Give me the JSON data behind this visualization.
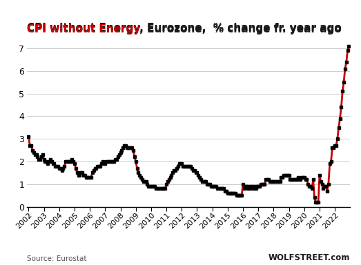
{
  "title_red": "CPI without Energy",
  "title_black": ", Eurozone,  % change fr. year ago",
  "source_left": "Source: Eurostat",
  "source_right": "WOLFSTREET.com",
  "xlim_start": 2001.9,
  "xlim_end": 2023.0,
  "ylim": [
    0,
    7.5
  ],
  "yticks": [
    0,
    1,
    2,
    3,
    4,
    5,
    6,
    7
  ],
  "background_color": "#ffffff",
  "line_color": "#cc0000",
  "marker_color": "#000000",
  "grid_color": "#cccccc",
  "xtick_labels": [
    "2002",
    "2003",
    "2004",
    "2005",
    "2006",
    "2007",
    "2008",
    "2009",
    "2010",
    "2011",
    "2012",
    "2013",
    "2014",
    "2015",
    "2016",
    "2017",
    "2018",
    "2019",
    "2020",
    "2021",
    "2022"
  ],
  "data": [
    [
      2002.0,
      3.1
    ],
    [
      2002.083,
      2.7
    ],
    [
      2002.167,
      2.7
    ],
    [
      2002.25,
      2.5
    ],
    [
      2002.333,
      2.4
    ],
    [
      2002.417,
      2.3
    ],
    [
      2002.5,
      2.3
    ],
    [
      2002.583,
      2.2
    ],
    [
      2002.667,
      2.1
    ],
    [
      2002.75,
      2.1
    ],
    [
      2002.833,
      2.2
    ],
    [
      2002.917,
      2.3
    ],
    [
      2003.0,
      2.1
    ],
    [
      2003.083,
      2.0
    ],
    [
      2003.167,
      2.0
    ],
    [
      2003.25,
      1.9
    ],
    [
      2003.333,
      2.0
    ],
    [
      2003.417,
      2.1
    ],
    [
      2003.5,
      2.0
    ],
    [
      2003.583,
      1.9
    ],
    [
      2003.667,
      1.9
    ],
    [
      2003.75,
      1.8
    ],
    [
      2003.833,
      1.8
    ],
    [
      2003.917,
      1.8
    ],
    [
      2004.0,
      1.7
    ],
    [
      2004.083,
      1.7
    ],
    [
      2004.167,
      1.6
    ],
    [
      2004.25,
      1.7
    ],
    [
      2004.333,
      1.8
    ],
    [
      2004.417,
      2.0
    ],
    [
      2004.5,
      2.0
    ],
    [
      2004.583,
      2.0
    ],
    [
      2004.667,
      2.0
    ],
    [
      2004.75,
      2.0
    ],
    [
      2004.833,
      2.1
    ],
    [
      2004.917,
      2.0
    ],
    [
      2005.0,
      1.9
    ],
    [
      2005.083,
      1.7
    ],
    [
      2005.167,
      1.5
    ],
    [
      2005.25,
      1.4
    ],
    [
      2005.333,
      1.4
    ],
    [
      2005.417,
      1.5
    ],
    [
      2005.5,
      1.5
    ],
    [
      2005.583,
      1.4
    ],
    [
      2005.667,
      1.4
    ],
    [
      2005.75,
      1.3
    ],
    [
      2005.833,
      1.3
    ],
    [
      2005.917,
      1.3
    ],
    [
      2006.0,
      1.3
    ],
    [
      2006.083,
      1.3
    ],
    [
      2006.167,
      1.5
    ],
    [
      2006.25,
      1.6
    ],
    [
      2006.333,
      1.7
    ],
    [
      2006.417,
      1.7
    ],
    [
      2006.5,
      1.8
    ],
    [
      2006.583,
      1.8
    ],
    [
      2006.667,
      1.8
    ],
    [
      2006.75,
      1.9
    ],
    [
      2006.833,
      2.0
    ],
    [
      2006.917,
      1.9
    ],
    [
      2007.0,
      1.9
    ],
    [
      2007.083,
      2.0
    ],
    [
      2007.167,
      2.0
    ],
    [
      2007.25,
      2.0
    ],
    [
      2007.333,
      2.0
    ],
    [
      2007.417,
      2.0
    ],
    [
      2007.5,
      2.0
    ],
    [
      2007.583,
      2.0
    ],
    [
      2007.667,
      2.1
    ],
    [
      2007.75,
      2.1
    ],
    [
      2007.833,
      2.2
    ],
    [
      2007.917,
      2.3
    ],
    [
      2008.0,
      2.4
    ],
    [
      2008.083,
      2.5
    ],
    [
      2008.167,
      2.6
    ],
    [
      2008.25,
      2.7
    ],
    [
      2008.333,
      2.7
    ],
    [
      2008.417,
      2.6
    ],
    [
      2008.5,
      2.6
    ],
    [
      2008.583,
      2.6
    ],
    [
      2008.667,
      2.6
    ],
    [
      2008.75,
      2.6
    ],
    [
      2008.833,
      2.5
    ],
    [
      2008.917,
      2.2
    ],
    [
      2009.0,
      2.0
    ],
    [
      2009.083,
      1.7
    ],
    [
      2009.167,
      1.5
    ],
    [
      2009.25,
      1.4
    ],
    [
      2009.333,
      1.3
    ],
    [
      2009.417,
      1.2
    ],
    [
      2009.5,
      1.1
    ],
    [
      2009.583,
      1.1
    ],
    [
      2009.667,
      1.1
    ],
    [
      2009.75,
      1.0
    ],
    [
      2009.833,
      0.9
    ],
    [
      2009.917,
      0.9
    ],
    [
      2010.0,
      0.9
    ],
    [
      2010.083,
      0.9
    ],
    [
      2010.167,
      0.9
    ],
    [
      2010.25,
      0.9
    ],
    [
      2010.333,
      0.8
    ],
    [
      2010.417,
      0.8
    ],
    [
      2010.5,
      0.8
    ],
    [
      2010.583,
      0.8
    ],
    [
      2010.667,
      0.8
    ],
    [
      2010.75,
      0.8
    ],
    [
      2010.833,
      0.8
    ],
    [
      2010.917,
      0.8
    ],
    [
      2011.0,
      1.0
    ],
    [
      2011.083,
      1.1
    ],
    [
      2011.167,
      1.2
    ],
    [
      2011.25,
      1.3
    ],
    [
      2011.333,
      1.4
    ],
    [
      2011.417,
      1.5
    ],
    [
      2011.5,
      1.6
    ],
    [
      2011.583,
      1.6
    ],
    [
      2011.667,
      1.7
    ],
    [
      2011.75,
      1.8
    ],
    [
      2011.833,
      1.9
    ],
    [
      2011.917,
      1.9
    ],
    [
      2012.0,
      1.9
    ],
    [
      2012.083,
      1.8
    ],
    [
      2012.167,
      1.8
    ],
    [
      2012.25,
      1.8
    ],
    [
      2012.333,
      1.8
    ],
    [
      2012.417,
      1.8
    ],
    [
      2012.5,
      1.8
    ],
    [
      2012.583,
      1.8
    ],
    [
      2012.667,
      1.7
    ],
    [
      2012.75,
      1.6
    ],
    [
      2012.833,
      1.6
    ],
    [
      2012.917,
      1.5
    ],
    [
      2013.0,
      1.5
    ],
    [
      2013.083,
      1.4
    ],
    [
      2013.167,
      1.3
    ],
    [
      2013.25,
      1.2
    ],
    [
      2013.333,
      1.1
    ],
    [
      2013.417,
      1.1
    ],
    [
      2013.5,
      1.1
    ],
    [
      2013.583,
      1.1
    ],
    [
      2013.667,
      1.0
    ],
    [
      2013.75,
      1.0
    ],
    [
      2013.833,
      1.0
    ],
    [
      2013.917,
      0.9
    ],
    [
      2014.0,
      0.9
    ],
    [
      2014.083,
      0.9
    ],
    [
      2014.167,
      0.9
    ],
    [
      2014.25,
      0.9
    ],
    [
      2014.333,
      0.8
    ],
    [
      2014.417,
      0.8
    ],
    [
      2014.5,
      0.8
    ],
    [
      2014.583,
      0.8
    ],
    [
      2014.667,
      0.8
    ],
    [
      2014.75,
      0.8
    ],
    [
      2014.833,
      0.7
    ],
    [
      2014.917,
      0.7
    ],
    [
      2015.0,
      0.6
    ],
    [
      2015.083,
      0.6
    ],
    [
      2015.167,
      0.6
    ],
    [
      2015.25,
      0.6
    ],
    [
      2015.333,
      0.6
    ],
    [
      2015.417,
      0.6
    ],
    [
      2015.5,
      0.6
    ],
    [
      2015.583,
      0.5
    ],
    [
      2015.667,
      0.5
    ],
    [
      2015.75,
      0.5
    ],
    [
      2015.833,
      0.5
    ],
    [
      2015.917,
      0.5
    ],
    [
      2016.0,
      1.0
    ],
    [
      2016.083,
      0.8
    ],
    [
      2016.167,
      0.9
    ],
    [
      2016.25,
      0.9
    ],
    [
      2016.333,
      0.8
    ],
    [
      2016.417,
      0.8
    ],
    [
      2016.5,
      0.9
    ],
    [
      2016.583,
      0.8
    ],
    [
      2016.667,
      0.9
    ],
    [
      2016.75,
      0.8
    ],
    [
      2016.833,
      0.8
    ],
    [
      2016.917,
      0.9
    ],
    [
      2017.0,
      0.9
    ],
    [
      2017.083,
      0.9
    ],
    [
      2017.167,
      1.0
    ],
    [
      2017.25,
      1.0
    ],
    [
      2017.333,
      1.0
    ],
    [
      2017.417,
      1.0
    ],
    [
      2017.5,
      1.2
    ],
    [
      2017.583,
      1.2
    ],
    [
      2017.667,
      1.2
    ],
    [
      2017.75,
      1.1
    ],
    [
      2017.833,
      1.1
    ],
    [
      2017.917,
      1.1
    ],
    [
      2018.0,
      1.1
    ],
    [
      2018.083,
      1.1
    ],
    [
      2018.167,
      1.1
    ],
    [
      2018.25,
      1.1
    ],
    [
      2018.333,
      1.1
    ],
    [
      2018.417,
      1.1
    ],
    [
      2018.5,
      1.3
    ],
    [
      2018.583,
      1.3
    ],
    [
      2018.667,
      1.4
    ],
    [
      2018.75,
      1.4
    ],
    [
      2018.833,
      1.4
    ],
    [
      2018.917,
      1.4
    ],
    [
      2019.0,
      1.4
    ],
    [
      2019.083,
      1.2
    ],
    [
      2019.167,
      1.2
    ],
    [
      2019.25,
      1.2
    ],
    [
      2019.333,
      1.2
    ],
    [
      2019.417,
      1.2
    ],
    [
      2019.5,
      1.2
    ],
    [
      2019.583,
      1.3
    ],
    [
      2019.667,
      1.2
    ],
    [
      2019.75,
      1.2
    ],
    [
      2019.833,
      1.3
    ],
    [
      2019.917,
      1.3
    ],
    [
      2020.0,
      1.3
    ],
    [
      2020.083,
      1.2
    ],
    [
      2020.167,
      1.2
    ],
    [
      2020.25,
      1.0
    ],
    [
      2020.333,
      0.9
    ],
    [
      2020.417,
      0.9
    ],
    [
      2020.5,
      0.8
    ],
    [
      2020.583,
      1.2
    ],
    [
      2020.667,
      0.4
    ],
    [
      2020.75,
      0.2
    ],
    [
      2020.833,
      0.2
    ],
    [
      2020.917,
      0.2
    ],
    [
      2021.0,
      1.4
    ],
    [
      2021.083,
      1.1
    ],
    [
      2021.167,
      1.0
    ],
    [
      2021.25,
      0.8
    ],
    [
      2021.333,
      0.9
    ],
    [
      2021.417,
      0.9
    ],
    [
      2021.5,
      0.7
    ],
    [
      2021.583,
      1.0
    ],
    [
      2021.667,
      1.9
    ],
    [
      2021.75,
      2.0
    ],
    [
      2021.833,
      2.6
    ],
    [
      2021.917,
      2.6
    ],
    [
      2022.0,
      2.7
    ],
    [
      2022.083,
      2.7
    ],
    [
      2022.167,
      3.0
    ],
    [
      2022.25,
      3.5
    ],
    [
      2022.333,
      3.9
    ],
    [
      2022.417,
      4.4
    ],
    [
      2022.5,
      5.1
    ],
    [
      2022.583,
      5.5
    ],
    [
      2022.667,
      6.1
    ],
    [
      2022.75,
      6.4
    ],
    [
      2022.833,
      6.9
    ],
    [
      2022.917,
      7.1
    ]
  ]
}
